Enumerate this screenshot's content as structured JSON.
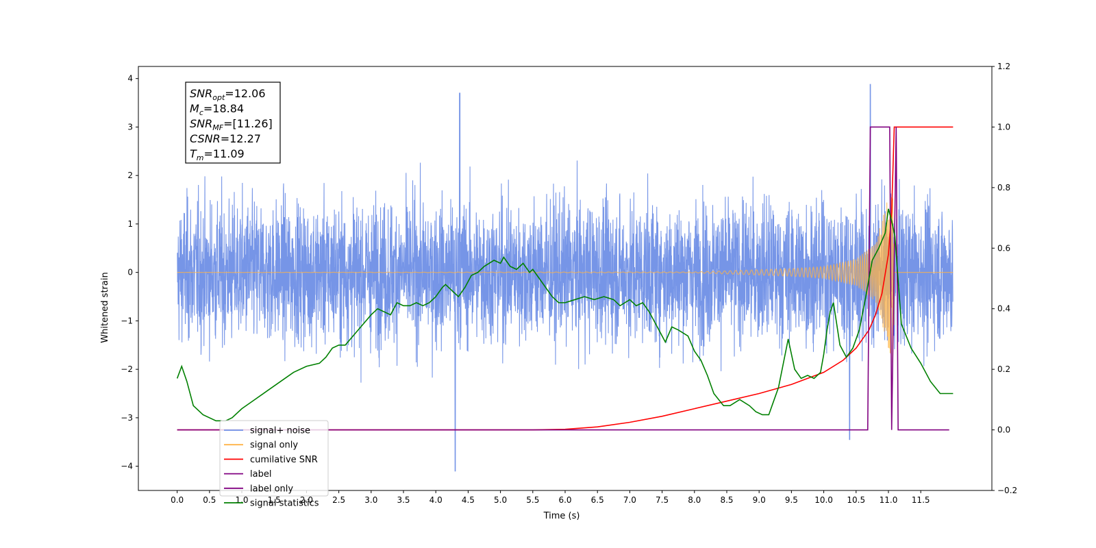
{
  "chart_data": {
    "type": "line",
    "xlabel": "Time (s)",
    "ylabel_left": "Whitened strain",
    "ylabel_right": "",
    "xlim": [
      -0.6,
      12.6
    ],
    "ylim_left": [
      -4.5,
      4.25
    ],
    "ylim_right": [
      -0.2,
      1.2
    ],
    "x_ticks": [
      "0.0",
      "0.5",
      "1.0",
      "1.5",
      "2.0",
      "2.5",
      "3.0",
      "3.5",
      "4.0",
      "4.5",
      "5.0",
      "5.5",
      "6.0",
      "6.5",
      "7.0",
      "7.5",
      "8.0",
      "8.5",
      "9.0",
      "9.5",
      "10.0",
      "10.5",
      "11.0",
      "11.5"
    ],
    "y_ticks_left": [
      "4",
      "3",
      "2",
      "1",
      "0",
      "−1",
      "−2",
      "−3",
      "−4"
    ],
    "y_ticks_right": [
      "1.2",
      "1.0",
      "0.8",
      "0.6",
      "0.4",
      "0.2",
      "0.0",
      "−0.2"
    ],
    "grid": false,
    "legend_position": "lower-left",
    "annotation_lines": [
      {
        "sym": "SNR",
        "sub": "opt",
        "value": "=12.06"
      },
      {
        "sym": "M",
        "sub": "c",
        "value": "=18.84"
      },
      {
        "sym": "SNR",
        "sub": "MF",
        "value": "=[11.26]"
      },
      {
        "sym": "CSNR",
        "sub": "",
        "value": "=12.27"
      },
      {
        "sym": "T",
        "sub": "m",
        "value": "=11.09"
      }
    ],
    "series": [
      {
        "name": "signal+ noise",
        "axis": "left",
        "color": "#6f8fe6",
        "note_style": "dense noise, roughly Gaussian with sigma≈1, spanning 0.0–12.0 s",
        "x": [
          0.0,
          4.3,
          4.37,
          10.4,
          10.72,
          12.0
        ],
        "y": [
          0.4,
          -4.1,
          3.7,
          -3.45,
          3.88,
          -0.6
        ]
      },
      {
        "name": "signal only",
        "axis": "left",
        "color": "#ffb347",
        "x": [
          0.0,
          8.0,
          9.5,
          10.0,
          10.5,
          10.8,
          11.09,
          11.1,
          12.0
        ],
        "amplitude": [
          0.0,
          0.01,
          0.08,
          0.12,
          0.28,
          0.6,
          2.0,
          0.0,
          0.0
        ]
      },
      {
        "name": "cumilative SNR",
        "axis": "right",
        "color": "#ff0000",
        "x": [
          0.0,
          5.5,
          6.0,
          6.5,
          7.0,
          7.5,
          8.0,
          8.5,
          9.0,
          9.5,
          10.0,
          10.3,
          10.5,
          10.7,
          10.8,
          10.9,
          11.0,
          11.05,
          11.09,
          12.0
        ],
        "y": [
          0.0,
          0.0,
          0.002,
          0.01,
          0.025,
          0.045,
          0.07,
          0.095,
          0.12,
          0.15,
          0.19,
          0.23,
          0.27,
          0.33,
          0.38,
          0.45,
          0.58,
          0.72,
          1.0,
          1.0
        ]
      },
      {
        "name": "label",
        "axis": "right",
        "color": "#800080",
        "x": [
          0.0,
          10.68,
          10.72,
          11.02,
          11.05,
          11.12,
          11.15,
          11.94
        ],
        "y": [
          0.0,
          0.0,
          1.0,
          1.0,
          0.0,
          1.0,
          0.0,
          0.0
        ]
      },
      {
        "name": "label only",
        "axis": "right",
        "color": "#800080",
        "x": [],
        "y": []
      },
      {
        "name": "signal statistics",
        "axis": "right",
        "color": "#008000",
        "x": [
          0.0,
          0.07,
          0.15,
          0.25,
          0.4,
          0.6,
          0.75,
          0.85,
          1.0,
          1.2,
          1.4,
          1.6,
          1.8,
          2.0,
          2.2,
          2.3,
          2.4,
          2.5,
          2.6,
          2.8,
          3.0,
          3.1,
          3.3,
          3.4,
          3.5,
          3.6,
          3.7,
          3.8,
          3.9,
          4.0,
          4.1,
          4.15,
          4.25,
          4.35,
          4.45,
          4.55,
          4.65,
          4.75,
          4.9,
          5.0,
          5.05,
          5.15,
          5.25,
          5.35,
          5.45,
          5.5,
          5.6,
          5.7,
          5.8,
          5.9,
          6.0,
          6.15,
          6.3,
          6.45,
          6.6,
          6.75,
          6.85,
          7.0,
          7.1,
          7.2,
          7.3,
          7.45,
          7.55,
          7.65,
          7.75,
          7.9,
          8.0,
          8.1,
          8.2,
          8.3,
          8.45,
          8.55,
          8.7,
          8.85,
          8.95,
          9.05,
          9.15,
          9.2,
          9.3,
          9.45,
          9.55,
          9.65,
          9.75,
          9.85,
          9.95,
          10.0,
          10.05,
          10.1,
          10.15,
          10.25,
          10.35,
          10.45,
          10.55,
          10.65,
          10.75,
          10.85,
          10.95,
          11.0,
          11.05,
          11.1,
          11.2,
          11.35,
          11.5,
          11.65,
          11.8,
          11.9,
          12.0
        ],
        "y": [
          0.17,
          0.21,
          0.16,
          0.08,
          0.05,
          0.03,
          0.03,
          0.04,
          0.07,
          0.1,
          0.13,
          0.16,
          0.19,
          0.21,
          0.22,
          0.24,
          0.27,
          0.28,
          0.28,
          0.33,
          0.38,
          0.4,
          0.38,
          0.42,
          0.41,
          0.41,
          0.42,
          0.41,
          0.42,
          0.44,
          0.47,
          0.48,
          0.46,
          0.44,
          0.47,
          0.51,
          0.52,
          0.54,
          0.56,
          0.55,
          0.57,
          0.54,
          0.53,
          0.55,
          0.52,
          0.53,
          0.5,
          0.47,
          0.44,
          0.42,
          0.42,
          0.43,
          0.44,
          0.43,
          0.44,
          0.43,
          0.41,
          0.43,
          0.41,
          0.42,
          0.39,
          0.33,
          0.29,
          0.34,
          0.33,
          0.31,
          0.26,
          0.23,
          0.18,
          0.12,
          0.08,
          0.08,
          0.1,
          0.08,
          0.06,
          0.05,
          0.05,
          0.08,
          0.14,
          0.3,
          0.2,
          0.17,
          0.18,
          0.17,
          0.19,
          0.25,
          0.33,
          0.39,
          0.42,
          0.28,
          0.24,
          0.27,
          0.33,
          0.44,
          0.56,
          0.6,
          0.65,
          0.73,
          0.69,
          0.64,
          0.35,
          0.27,
          0.22,
          0.16,
          0.12,
          0.12,
          0.12
        ]
      }
    ]
  },
  "legend": {
    "items": [
      {
        "label": "signal+ noise",
        "color": "#6f8fe6"
      },
      {
        "label": "signal only",
        "color": "#ffb347"
      },
      {
        "label": "cumilative SNR",
        "color": "#ff0000"
      },
      {
        "label": "label",
        "color": "#800080"
      },
      {
        "label": "label only",
        "color": "#800080"
      },
      {
        "label": "signal statistics",
        "color": "#008000"
      }
    ]
  }
}
